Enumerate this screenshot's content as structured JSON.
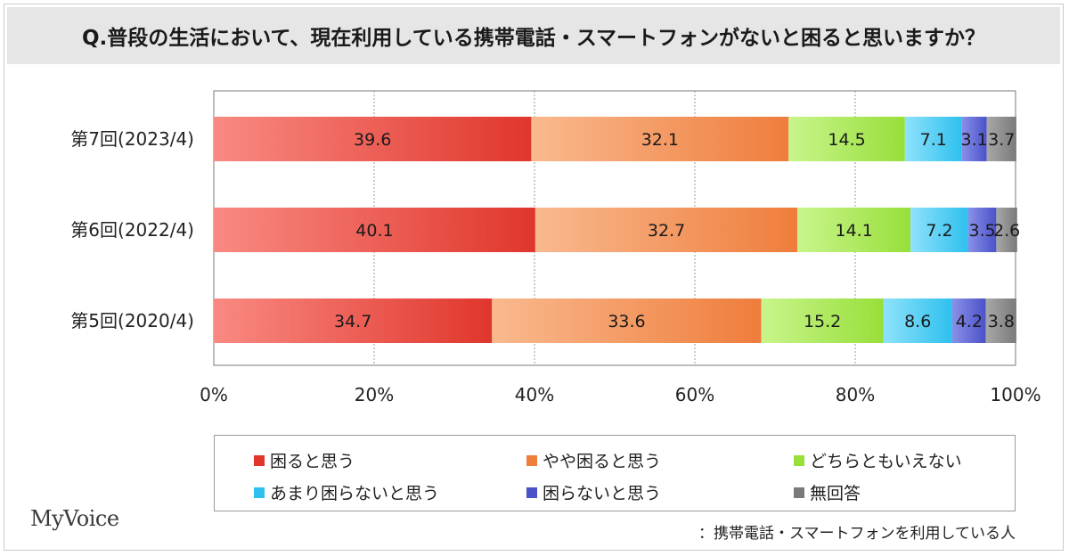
{
  "title": "Q.普段の生活において、現在利用している携帯電話・スマートフォンがないと困ると思いますか？",
  "brand": "MyVoice",
  "footnote": "：携帯電話・スマートフォンを利用している人",
  "chart_data": {
    "type": "bar",
    "orientation": "horizontal",
    "stacked": true,
    "percent": true,
    "categories": [
      "第7回(2023/4)",
      "第6回(2022/4)",
      "第5回(2020/4)"
    ],
    "series": [
      {
        "name": "困ると思う",
        "color": "#e0362c",
        "values": [
          39.6,
          40.1,
          34.7
        ]
      },
      {
        "name": "やや困ると思う",
        "color": "#ef7d3c",
        "values": [
          32.1,
          32.7,
          33.6
        ]
      },
      {
        "name": "どちらともいえない",
        "color": "#98df3a",
        "values": [
          14.5,
          14.1,
          15.2
        ]
      },
      {
        "name": "あまり困らないと思う",
        "color": "#2ec0ee",
        "values": [
          7.1,
          7.2,
          8.6
        ]
      },
      {
        "name": "困らないと思う",
        "color": "#4a52c8",
        "values": [
          3.1,
          3.5,
          4.2
        ]
      },
      {
        "name": "無回答",
        "color": "#7a7a7a",
        "values": [
          3.7,
          2.6,
          3.8
        ]
      }
    ],
    "x_ticks": [
      "0%",
      "20%",
      "40%",
      "60%",
      "80%",
      "100%"
    ],
    "xlim": [
      0,
      100
    ],
    "grid": true,
    "legend_position": "bottom"
  }
}
